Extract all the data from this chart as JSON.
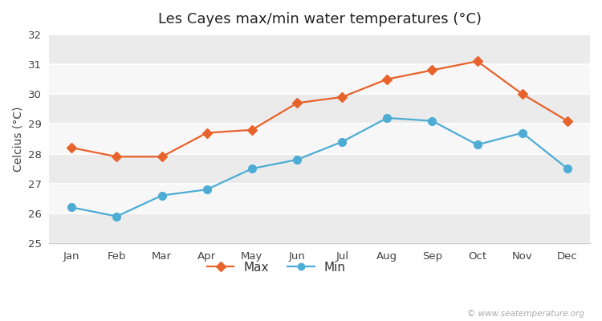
{
  "title": "Les Cayes max/min water temperatures (°C)",
  "ylabel": "Celcius (°C)",
  "months": [
    "Jan",
    "Feb",
    "Mar",
    "Apr",
    "May",
    "Jun",
    "Jul",
    "Aug",
    "Sep",
    "Oct",
    "Nov",
    "Dec"
  ],
  "max_values": [
    28.2,
    27.9,
    27.9,
    28.7,
    28.8,
    29.7,
    29.9,
    30.5,
    30.8,
    31.1,
    30.0,
    29.1
  ],
  "min_values": [
    26.2,
    25.9,
    26.6,
    26.8,
    27.5,
    27.8,
    28.4,
    29.2,
    29.1,
    28.3,
    28.7,
    27.5
  ],
  "max_color": "#e8622c",
  "min_color": "#4dacd4",
  "bg_color": "#ffffff",
  "band_color_light": "#ebebeb",
  "band_color_dark": "#f7f7f7",
  "ylim": [
    25,
    32
  ],
  "yticks": [
    25,
    26,
    27,
    28,
    29,
    30,
    31,
    32
  ],
  "legend_labels": [
    "Max",
    "Min"
  ],
  "watermark": "© www.seatemperature.org",
  "title_fontsize": 13,
  "axis_label_fontsize": 10,
  "tick_fontsize": 9.5,
  "legend_fontsize": 11,
  "marker_style_max": "D",
  "marker_style_min": "o",
  "marker_size_max": 6,
  "marker_size_min": 7,
  "line_width": 1.6
}
